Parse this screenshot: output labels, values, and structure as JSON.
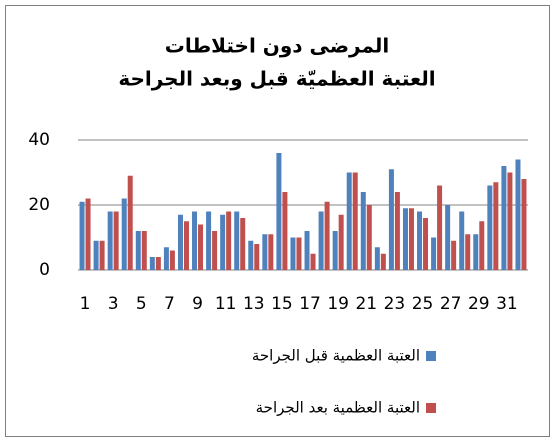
{
  "chart_data": {
    "type": "bar",
    "title_lines": [
      "المرضى دون اختلاطات",
      "العتبة العظميّة قبل وبعد الجراحة"
    ],
    "categories": [
      "1",
      null,
      "3",
      null,
      "5",
      null,
      "7",
      null,
      "9",
      null,
      "11",
      null,
      "13",
      null,
      "15",
      null,
      "17",
      null,
      "19",
      null,
      "21",
      null,
      "23",
      null,
      "25",
      null,
      "27",
      null,
      "29",
      null,
      "31",
      null
    ],
    "series": [
      {
        "name": "العتبة العظمية قبل الجراحة",
        "color": "#4f81bd",
        "values": [
          21,
          9,
          18,
          22,
          12,
          4,
          7,
          17,
          18,
          18,
          17,
          18,
          9,
          11,
          36,
          10,
          12,
          18,
          12,
          30,
          24,
          7,
          31,
          19,
          18,
          10,
          20,
          18,
          11,
          26,
          32,
          34
        ]
      },
      {
        "name": "العتبة العظمية بعد الجراحة",
        "color": "#c0504d",
        "values": [
          22,
          9,
          18,
          29,
          12,
          4,
          6,
          15,
          14,
          12,
          18,
          16,
          8,
          11,
          24,
          10,
          5,
          21,
          17,
          30,
          20,
          5,
          24,
          19,
          16,
          26,
          9,
          11,
          15,
          27,
          30,
          28
        ]
      }
    ],
    "ylim": [
      0,
      40
    ],
    "yticks": [
      0,
      20,
      40
    ],
    "grid": true,
    "legend": "bottom"
  }
}
